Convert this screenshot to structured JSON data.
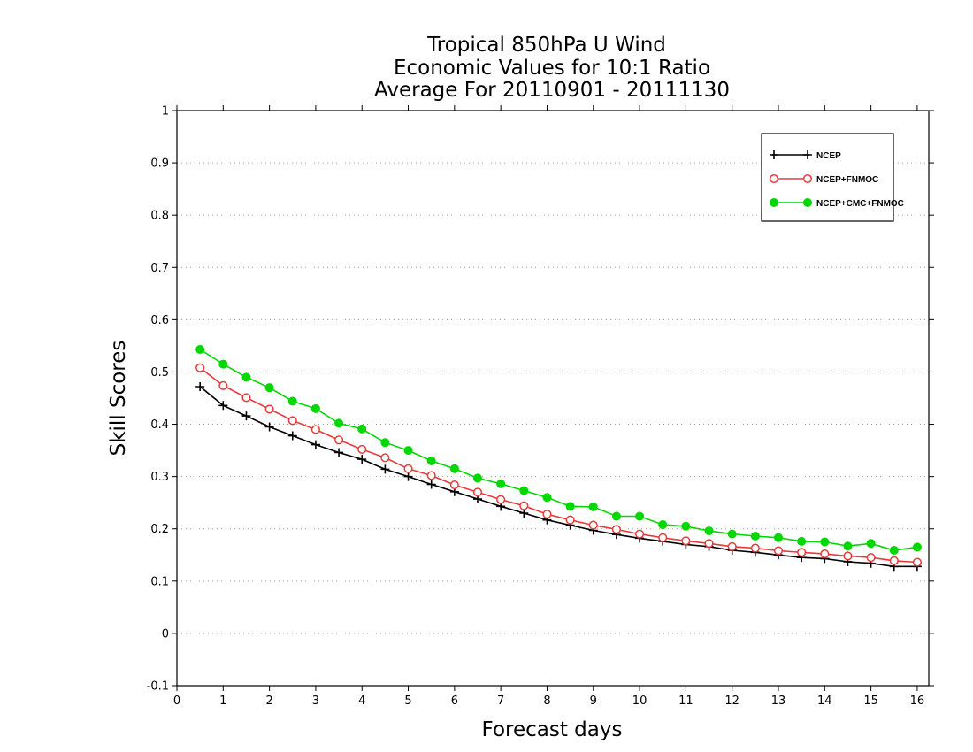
{
  "chart_data": {
    "type": "line",
    "title": [
      "Tropical 850hPa U Wind",
      "Economic Values for 10:1 Ratio",
      "Average For 20110901 - 20111130"
    ],
    "xlabel": "Forecast days",
    "ylabel": "Skill Scores",
    "xlim": [
      0,
      16.25
    ],
    "ylim": [
      -0.1,
      1
    ],
    "xticks": [
      0,
      1,
      2,
      3,
      4,
      5,
      6,
      7,
      8,
      9,
      10,
      11,
      12,
      13,
      14,
      15,
      16
    ],
    "yticks": [
      -0.1,
      0,
      0.1,
      0.2,
      0.3,
      0.4,
      0.5,
      0.6,
      0.7,
      0.8,
      0.9,
      1
    ],
    "ytick_labels": [
      "-0.1",
      "0",
      "0.1",
      "0.2",
      "0.3",
      "0.4",
      "0.5",
      "0.6",
      "0.7",
      "0.8",
      "0.9",
      "1"
    ],
    "grid": "horizontal dotted",
    "legend_position": "top-right",
    "x": [
      0.5,
      1,
      1.5,
      2,
      2.5,
      3,
      3.5,
      4,
      4.5,
      5,
      5.5,
      6,
      6.5,
      7,
      7.5,
      8,
      8.5,
      9,
      9.5,
      10,
      10.5,
      11,
      11.5,
      12,
      12.5,
      13,
      13.5,
      14,
      14.5,
      15,
      15.5,
      16
    ],
    "series": [
      {
        "name": "NCEP",
        "color": "#000000",
        "marker": "plus",
        "values": [
          0.472,
          0.436,
          0.416,
          0.395,
          0.378,
          0.361,
          0.346,
          0.333,
          0.314,
          0.3,
          0.285,
          0.271,
          0.257,
          0.243,
          0.23,
          0.217,
          0.207,
          0.197,
          0.189,
          0.182,
          0.176,
          0.17,
          0.166,
          0.159,
          0.155,
          0.15,
          0.145,
          0.143,
          0.137,
          0.134,
          0.128,
          0.128
        ]
      },
      {
        "name": "NCEP+FNMOC",
        "color": "#e83a3a",
        "marker": "open-circle",
        "values": [
          0.508,
          0.474,
          0.451,
          0.429,
          0.407,
          0.39,
          0.37,
          0.352,
          0.336,
          0.315,
          0.302,
          0.284,
          0.27,
          0.256,
          0.244,
          0.228,
          0.217,
          0.207,
          0.199,
          0.19,
          0.183,
          0.177,
          0.172,
          0.166,
          0.163,
          0.158,
          0.155,
          0.152,
          0.148,
          0.145,
          0.139,
          0.136
        ]
      },
      {
        "name": "NCEP+CMC+FNMOC",
        "color": "#00d800",
        "marker": "filled-circle",
        "values": [
          0.543,
          0.515,
          0.49,
          0.47,
          0.444,
          0.43,
          0.402,
          0.391,
          0.365,
          0.35,
          0.33,
          0.315,
          0.297,
          0.286,
          0.273,
          0.26,
          0.243,
          0.242,
          0.224,
          0.224,
          0.208,
          0.205,
          0.196,
          0.19,
          0.186,
          0.183,
          0.176,
          0.175,
          0.167,
          0.172,
          0.159,
          0.165
        ]
      }
    ]
  }
}
